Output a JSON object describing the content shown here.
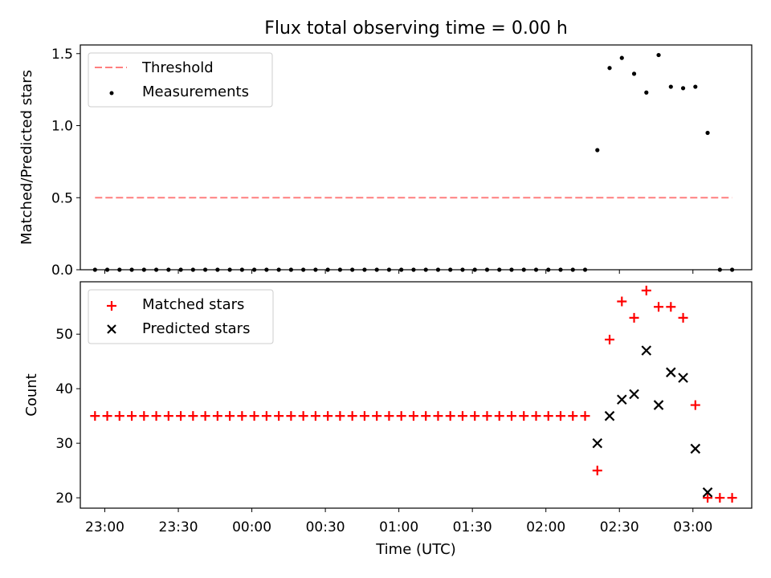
{
  "chart_data": [
    {
      "type": "scatter",
      "title": "Flux total observing time = 0.00 h",
      "xlabel": "",
      "ylabel": "Matched/Predicted stars",
      "ylim": [
        0,
        1.56
      ],
      "yticks": [
        0.0,
        0.5,
        1.0,
        1.5
      ],
      "ytick_labels": [
        "0.0",
        "0.5",
        "1.0",
        "1.5"
      ],
      "grid": false,
      "legend_position": "top-left",
      "series": [
        {
          "name": "Threshold",
          "kind": "dashed-line",
          "color": "#ff7f7f",
          "x": [
            -0.2,
            12.8
          ],
          "y": [
            0.5,
            0.5
          ]
        },
        {
          "name": "Measurements",
          "kind": "dots",
          "color": "#000000",
          "x": [
            -0.2,
            0.05,
            0.3,
            0.55,
            0.8,
            1.05,
            1.3,
            1.55,
            1.8,
            2.05,
            2.3,
            2.55,
            2.8,
            3.05,
            3.3,
            3.55,
            3.8,
            4.05,
            4.3,
            4.55,
            4.8,
            5.05,
            5.3,
            5.55,
            5.8,
            6.05,
            6.3,
            6.55,
            6.8,
            7.05,
            7.3,
            7.55,
            7.8,
            8.05,
            8.3,
            8.55,
            8.8,
            9.05,
            9.3,
            9.55,
            9.8,
            10.05,
            10.3,
            10.55,
            10.8,
            11.05,
            11.3,
            11.55,
            11.8,
            12.05,
            12.3,
            12.55,
            12.8
          ],
          "y": [
            0,
            0,
            0,
            0,
            0,
            0,
            0,
            0,
            0,
            0,
            0,
            0,
            0,
            0,
            0,
            0,
            0,
            0,
            0,
            0,
            0,
            0,
            0,
            0,
            0,
            0,
            0,
            0,
            0,
            0,
            0,
            0,
            0,
            0,
            0,
            0,
            0,
            0,
            0,
            0,
            0,
            0.83,
            1.4,
            1.47,
            1.36,
            1.23,
            1.49,
            1.27,
            1.26,
            1.27,
            0.95,
            0,
            0
          ]
        }
      ]
    },
    {
      "type": "scatter",
      "title": "",
      "xlabel": "Time (UTC)",
      "ylabel": "Count",
      "ylim": [
        18.1,
        59.6
      ],
      "yticks": [
        20,
        30,
        40,
        50
      ],
      "ytick_labels": [
        "20",
        "30",
        "40",
        "50"
      ],
      "xlim": [
        -0.5,
        13.2
      ],
      "xticks": [
        0,
        1.5,
        3,
        4.5,
        6,
        7.5,
        9,
        10.5,
        12
      ],
      "xtick_labels": [
        "23:00",
        "23:30",
        "00:00",
        "00:30",
        "01:00",
        "01:30",
        "02:00",
        "02:30",
        "03:00"
      ],
      "grid": false,
      "legend_position": "top-left",
      "series": [
        {
          "name": "Matched stars",
          "kind": "plus",
          "color": "#ff0000",
          "x": [
            -0.2,
            0.05,
            0.3,
            0.55,
            0.8,
            1.05,
            1.3,
            1.55,
            1.8,
            2.05,
            2.3,
            2.55,
            2.8,
            3.05,
            3.3,
            3.55,
            3.8,
            4.05,
            4.3,
            4.55,
            4.8,
            5.05,
            5.3,
            5.55,
            5.8,
            6.05,
            6.3,
            6.55,
            6.8,
            7.05,
            7.3,
            7.55,
            7.8,
            8.05,
            8.3,
            8.55,
            8.8,
            9.05,
            9.3,
            9.55,
            9.8,
            10.05,
            10.3,
            10.55,
            10.8,
            11.05,
            11.3,
            11.55,
            11.8,
            12.05,
            12.3,
            12.55,
            12.8
          ],
          "y": [
            35,
            35,
            35,
            35,
            35,
            35,
            35,
            35,
            35,
            35,
            35,
            35,
            35,
            35,
            35,
            35,
            35,
            35,
            35,
            35,
            35,
            35,
            35,
            35,
            35,
            35,
            35,
            35,
            35,
            35,
            35,
            35,
            35,
            35,
            35,
            35,
            35,
            35,
            35,
            35,
            35,
            25,
            49,
            56,
            53,
            58,
            55,
            55,
            53,
            37,
            20,
            20,
            20
          ]
        },
        {
          "name": "Predicted stars",
          "kind": "x",
          "color": "#000000",
          "x": [
            10.05,
            10.3,
            10.55,
            10.8,
            11.05,
            11.3,
            11.55,
            11.8,
            12.05,
            12.3
          ],
          "y": [
            30,
            35,
            38,
            39,
            47,
            37,
            43,
            42,
            29,
            21
          ]
        }
      ]
    }
  ]
}
